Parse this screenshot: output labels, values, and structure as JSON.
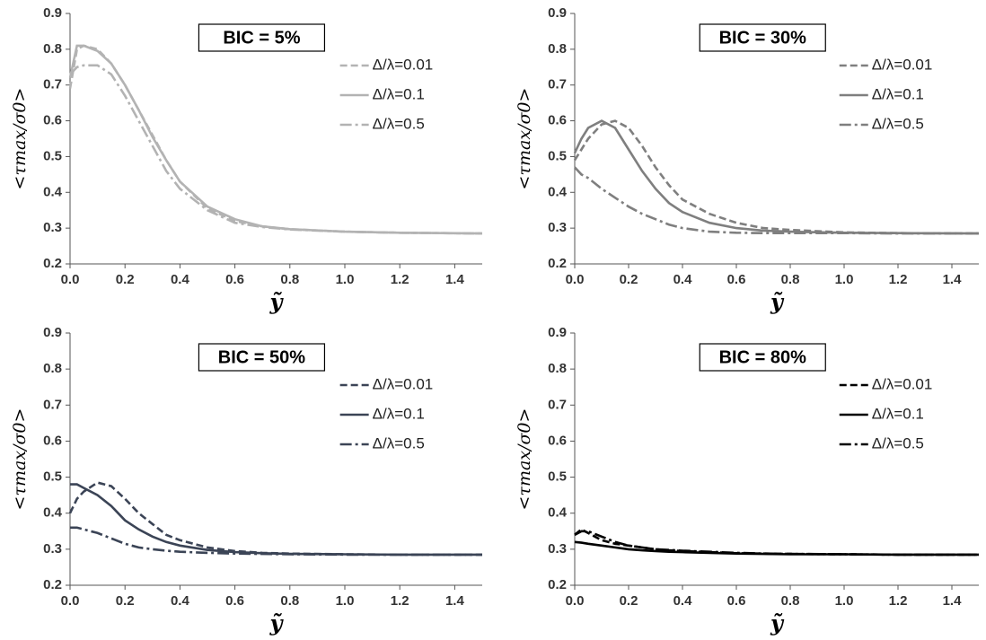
{
  "chart_data": [
    {
      "type": "line",
      "title": "BIC = 5%",
      "x_label": "ỹ",
      "y_label": "<τmax/σ0>",
      "x": [
        0,
        0.025,
        0.05,
        0.1,
        0.15,
        0.2,
        0.25,
        0.3,
        0.35,
        0.4,
        0.5,
        0.6,
        0.7,
        0.8,
        1.0,
        1.2,
        1.5
      ],
      "series": [
        {
          "name": "Δ/λ=0.01",
          "color": "#b3b3b3",
          "linestyle": "dash",
          "values": [
            0.69,
            0.8,
            0.81,
            0.8,
            0.76,
            0.7,
            0.63,
            0.56,
            0.49,
            0.43,
            0.355,
            0.32,
            0.305,
            0.297,
            0.29,
            0.287,
            0.285
          ]
        },
        {
          "name": "Δ/λ=0.1",
          "color": "#b3b3b3",
          "linestyle": "solid",
          "values": [
            0.72,
            0.81,
            0.81,
            0.795,
            0.76,
            0.7,
            0.63,
            0.555,
            0.49,
            0.43,
            0.36,
            0.325,
            0.305,
            0.297,
            0.29,
            0.287,
            0.285
          ]
        },
        {
          "name": "Δ/λ=0.5",
          "color": "#b3b3b3",
          "linestyle": "dashdot",
          "values": [
            0.73,
            0.75,
            0.755,
            0.755,
            0.73,
            0.67,
            0.6,
            0.53,
            0.46,
            0.41,
            0.35,
            0.315,
            0.303,
            0.296,
            0.29,
            0.287,
            0.285
          ]
        }
      ],
      "xlim": [
        0,
        1.5
      ],
      "ylim": [
        0.2,
        0.9
      ],
      "xticks": [
        {
          "value": 0,
          "label": "0.0"
        },
        0.2,
        0.4,
        0.6,
        0.8,
        {
          "value": 1,
          "label": "1.0"
        },
        1.2,
        1.4
      ],
      "yticks": [
        0.2,
        0.3,
        0.4,
        0.5,
        0.6,
        0.7,
        0.8,
        0.9
      ],
      "legend": "upper right"
    },
    {
      "type": "line",
      "title": "BIC = 30%",
      "x_label": "ỹ",
      "y_label": "<τmax/σ0>",
      "x": [
        0,
        0.025,
        0.05,
        0.1,
        0.15,
        0.2,
        0.25,
        0.3,
        0.35,
        0.4,
        0.5,
        0.6,
        0.7,
        0.8,
        1.0,
        1.2,
        1.5
      ],
      "series": [
        {
          "name": "Δ/λ=0.01",
          "color": "#7f7f7f",
          "linestyle": "dash",
          "values": [
            0.49,
            0.52,
            0.55,
            0.59,
            0.6,
            0.58,
            0.53,
            0.47,
            0.42,
            0.38,
            0.34,
            0.315,
            0.3,
            0.295,
            0.288,
            0.286,
            0.285
          ]
        },
        {
          "name": "Δ/λ=0.1",
          "color": "#7f7f7f",
          "linestyle": "solid",
          "values": [
            0.51,
            0.55,
            0.58,
            0.6,
            0.58,
            0.52,
            0.46,
            0.41,
            0.37,
            0.345,
            0.315,
            0.3,
            0.293,
            0.29,
            0.287,
            0.286,
            0.285
          ]
        },
        {
          "name": "Δ/λ=0.5",
          "color": "#7f7f7f",
          "linestyle": "dashdot",
          "values": [
            0.47,
            0.45,
            0.44,
            0.41,
            0.385,
            0.36,
            0.34,
            0.325,
            0.31,
            0.3,
            0.29,
            0.287,
            0.286,
            0.286,
            0.286,
            0.285,
            0.285
          ]
        }
      ],
      "xlim": [
        0,
        1.5
      ],
      "ylim": [
        0.2,
        0.9
      ],
      "xticks": [
        {
          "value": 0,
          "label": "0.0"
        },
        0.2,
        0.4,
        0.6,
        0.8,
        {
          "value": 1,
          "label": "1.0"
        },
        1.2,
        1.4
      ],
      "yticks": [
        0.2,
        0.3,
        0.4,
        0.5,
        0.6,
        0.7,
        0.8,
        0.9
      ],
      "legend": "upper right"
    },
    {
      "type": "line",
      "title": "BIC = 50%",
      "x_label": "ỹ",
      "y_label": "<τmax/σ0>",
      "x": [
        0,
        0.025,
        0.05,
        0.1,
        0.15,
        0.2,
        0.25,
        0.3,
        0.35,
        0.4,
        0.5,
        0.6,
        0.7,
        0.8,
        1.0,
        1.2,
        1.5
      ],
      "series": [
        {
          "name": "Δ/λ=0.01",
          "color": "#3b4456",
          "linestyle": "dash",
          "values": [
            0.4,
            0.44,
            0.46,
            0.485,
            0.475,
            0.44,
            0.4,
            0.37,
            0.34,
            0.325,
            0.305,
            0.295,
            0.29,
            0.288,
            0.286,
            0.285,
            0.285
          ]
        },
        {
          "name": "Δ/λ=0.1",
          "color": "#3b4456",
          "linestyle": "solid",
          "values": [
            0.48,
            0.48,
            0.47,
            0.45,
            0.42,
            0.38,
            0.355,
            0.335,
            0.32,
            0.31,
            0.298,
            0.292,
            0.289,
            0.287,
            0.286,
            0.285,
            0.285
          ]
        },
        {
          "name": "Δ/λ=0.5",
          "color": "#3b4456",
          "linestyle": "dashdot",
          "values": [
            0.36,
            0.36,
            0.355,
            0.345,
            0.33,
            0.315,
            0.305,
            0.3,
            0.296,
            0.293,
            0.29,
            0.288,
            0.287,
            0.286,
            0.285,
            0.285,
            0.285
          ]
        }
      ],
      "xlim": [
        0,
        1.5
      ],
      "ylim": [
        0.2,
        0.9
      ],
      "xticks": [
        {
          "value": 0,
          "label": "0.0"
        },
        0.2,
        0.4,
        0.6,
        0.8,
        {
          "value": 1,
          "label": "1.0"
        },
        1.2,
        1.4
      ],
      "yticks": [
        0.2,
        0.3,
        0.4,
        0.5,
        0.6,
        0.7,
        0.8,
        0.9
      ],
      "legend": "upper right"
    },
    {
      "type": "line",
      "title": "BIC = 80%",
      "x_label": "ỹ",
      "y_label": "<τmax/σ0>",
      "x": [
        0,
        0.025,
        0.05,
        0.1,
        0.15,
        0.2,
        0.25,
        0.3,
        0.35,
        0.4,
        0.5,
        0.6,
        0.7,
        0.8,
        1.0,
        1.2,
        1.5
      ],
      "series": [
        {
          "name": "Δ/λ=0.01",
          "color": "#000000",
          "linestyle": "dash",
          "values": [
            0.34,
            0.355,
            0.345,
            0.325,
            0.315,
            0.31,
            0.305,
            0.3,
            0.297,
            0.295,
            0.292,
            0.289,
            0.288,
            0.287,
            0.286,
            0.285,
            0.285
          ]
        },
        {
          "name": "Δ/λ=0.1",
          "color": "#000000",
          "linestyle": "solid",
          "values": [
            0.32,
            0.318,
            0.315,
            0.31,
            0.305,
            0.3,
            0.297,
            0.295,
            0.293,
            0.292,
            0.29,
            0.288,
            0.287,
            0.286,
            0.286,
            0.285,
            0.285
          ]
        },
        {
          "name": "Δ/λ=0.5",
          "color": "#000000",
          "linestyle": "dashdot",
          "values": [
            0.34,
            0.35,
            0.35,
            0.335,
            0.32,
            0.31,
            0.305,
            0.3,
            0.298,
            0.296,
            0.293,
            0.29,
            0.288,
            0.287,
            0.286,
            0.285,
            0.285
          ]
        }
      ],
      "xlim": [
        0,
        1.5
      ],
      "ylim": [
        0.2,
        0.9
      ],
      "xticks": [
        {
          "value": 0,
          "label": "0.0"
        },
        0.2,
        0.4,
        0.6,
        0.8,
        {
          "value": 1,
          "label": "1.0"
        },
        1.2,
        1.4
      ],
      "yticks": [
        0.2,
        0.3,
        0.4,
        0.5,
        0.6,
        0.7,
        0.8,
        0.9
      ],
      "legend": "upper right"
    }
  ]
}
